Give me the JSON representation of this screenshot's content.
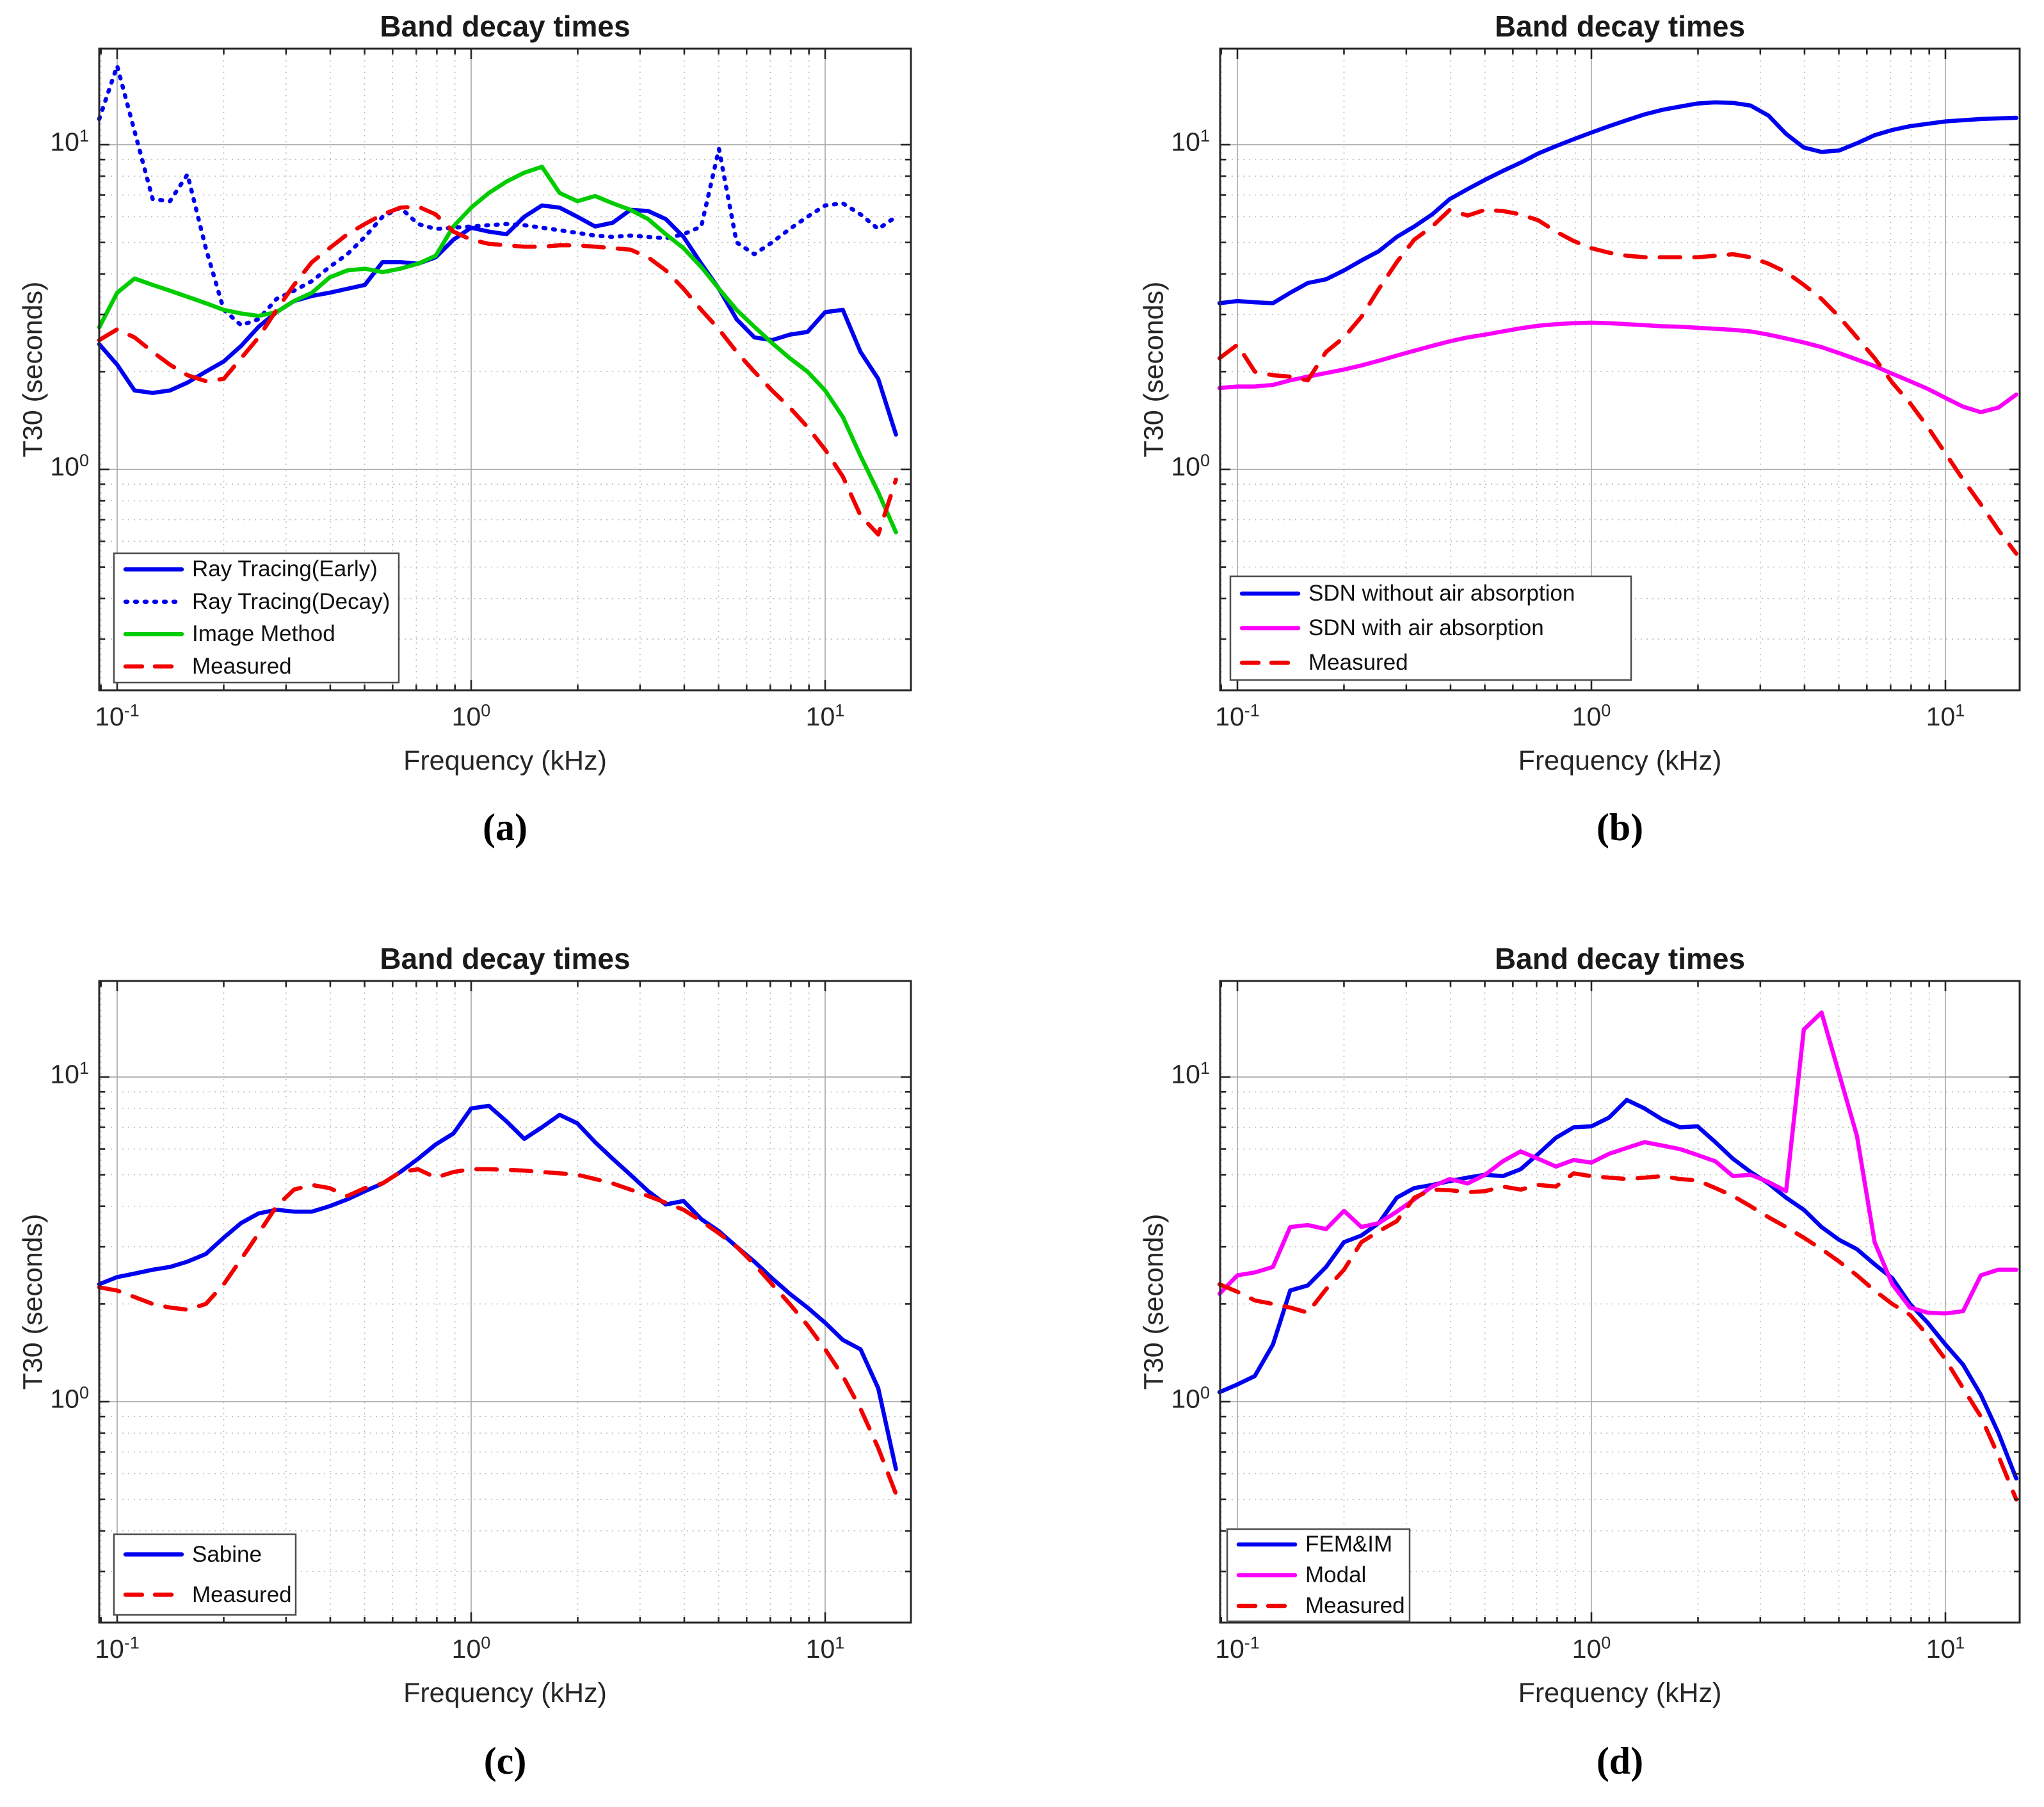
{
  "page": {
    "background": "#ffffff"
  },
  "shared": {
    "frequencies": [
      0.089,
      0.1,
      0.112,
      0.126,
      0.141,
      0.158,
      0.178,
      0.2,
      0.224,
      0.251,
      0.282,
      0.316,
      0.355,
      0.398,
      0.447,
      0.501,
      0.562,
      0.631,
      0.708,
      0.794,
      0.891,
      1.0,
      1.122,
      1.259,
      1.413,
      1.585,
      1.778,
      1.995,
      2.239,
      2.512,
      2.818,
      3.162,
      3.548,
      3.981,
      4.467,
      5.012,
      5.623,
      6.31,
      7.079,
      7.943,
      8.913,
      10.0,
      11.22,
      12.589,
      14.125,
      15.849
    ],
    "x_tick_values": [
      0.1,
      1,
      10
    ],
    "x_tick_labels": [
      {
        "base": "10",
        "exp": "-1"
      },
      {
        "base": "10",
        "exp": "0"
      },
      {
        "base": "10",
        "exp": "1"
      }
    ],
    "y_tick_values": [
      1,
      10
    ],
    "y_tick_labels": [
      {
        "base": "10",
        "exp": "0"
      },
      {
        "base": "10",
        "exp": "1"
      }
    ],
    "colors": {
      "blue": "#0000f0",
      "green": "#00cc00",
      "red": "#f20000",
      "magenta": "#fa00fa",
      "grid_major": "#ababab",
      "grid_minor": "#bdbdbd",
      "frame": "#262626",
      "legend_border": "#4d4d4d"
    }
  },
  "chart_data": [
    {
      "id": "a",
      "caption": "(a)",
      "type": "line",
      "title": "Band decay times",
      "xlabel": "Frequency (kHz)",
      "ylabel": "T30 (seconds)",
      "log_x": true,
      "log_y": true,
      "xlim": [
        0.089,
        17.5
      ],
      "ylim": [
        0.21,
        19.8
      ],
      "legend_position": "southwest",
      "series": [
        {
          "name": "Ray Tracing(Early)",
          "color": "blue",
          "style": "solid",
          "values": [
            2.43,
            2.1,
            1.75,
            1.72,
            1.75,
            1.85,
            2.0,
            2.15,
            2.4,
            2.75,
            3.05,
            3.3,
            3.42,
            3.5,
            3.6,
            3.7,
            4.35,
            4.35,
            4.3,
            4.5,
            5.1,
            5.55,
            5.4,
            5.3,
            6.0,
            6.5,
            6.4,
            6.0,
            5.6,
            5.75,
            6.3,
            6.25,
            5.9,
            5.2,
            4.3,
            3.6,
            2.9,
            2.55,
            2.5,
            2.6,
            2.65,
            3.05,
            3.1,
            2.3,
            1.9,
            1.28
          ]
        },
        {
          "name": "Ray Tracing(Decay)",
          "color": "blue",
          "style": "dotted",
          "values": [
            12.0,
            17.5,
            11.0,
            6.8,
            6.7,
            8.1,
            4.8,
            3.1,
            2.78,
            2.9,
            3.35,
            3.55,
            3.8,
            4.2,
            4.6,
            5.2,
            6.0,
            6.4,
            5.7,
            5.5,
            5.55,
            5.6,
            5.65,
            5.7,
            5.65,
            5.55,
            5.45,
            5.35,
            5.25,
            5.2,
            5.25,
            5.2,
            5.15,
            5.3,
            5.6,
            9.7,
            5.0,
            4.6,
            5.0,
            5.5,
            6.0,
            6.5,
            6.6,
            6.1,
            5.5,
            6.0
          ]
        },
        {
          "name": "Image Method",
          "color": "green",
          "style": "solid",
          "values": [
            2.74,
            3.5,
            3.87,
            3.7,
            3.55,
            3.4,
            3.25,
            3.1,
            3.02,
            2.97,
            3.05,
            3.3,
            3.5,
            3.9,
            4.1,
            4.15,
            4.05,
            4.15,
            4.3,
            4.55,
            5.6,
            6.4,
            7.1,
            7.7,
            8.2,
            8.55,
            7.1,
            6.7,
            6.95,
            6.6,
            6.3,
            5.9,
            5.3,
            4.8,
            4.2,
            3.6,
            3.1,
            2.75,
            2.45,
            2.2,
            2.0,
            1.75,
            1.45,
            1.1,
            0.85,
            0.64
          ]
        },
        {
          "name": "Measured",
          "color": "red",
          "style": "dashed",
          "values": [
            2.5,
            2.7,
            2.55,
            2.3,
            2.1,
            1.95,
            1.87,
            1.9,
            2.2,
            2.55,
            3.1,
            3.7,
            4.35,
            4.8,
            5.3,
            5.7,
            6.1,
            6.4,
            6.45,
            6.1,
            5.4,
            5.1,
            4.95,
            4.9,
            4.85,
            4.85,
            4.9,
            4.9,
            4.85,
            4.8,
            4.75,
            4.5,
            4.1,
            3.6,
            3.1,
            2.7,
            2.3,
            2.0,
            1.75,
            1.55,
            1.35,
            1.15,
            0.95,
            0.72,
            0.63,
            0.93
          ]
        }
      ]
    },
    {
      "id": "b",
      "caption": "(b)",
      "type": "line",
      "title": "Band decay times",
      "xlabel": "Frequency (kHz)",
      "ylabel": "T30 (seconds)",
      "log_x": true,
      "log_y": true,
      "xlim": [
        0.089,
        16.1
      ],
      "ylim": [
        0.21,
        19.8
      ],
      "legend_position": "southwest",
      "series": [
        {
          "name": "SDN without air absorption",
          "color": "blue",
          "style": "solid",
          "values": [
            3.25,
            3.3,
            3.27,
            3.25,
            3.5,
            3.75,
            3.85,
            4.1,
            4.4,
            4.7,
            5.2,
            5.6,
            6.1,
            6.8,
            7.3,
            7.8,
            8.3,
            8.8,
            9.4,
            9.9,
            10.4,
            10.9,
            11.4,
            11.9,
            12.4,
            12.8,
            13.1,
            13.4,
            13.5,
            13.45,
            13.2,
            12.3,
            10.8,
            9.8,
            9.5,
            9.6,
            10.1,
            10.7,
            11.1,
            11.4,
            11.6,
            11.8,
            11.9,
            12.0,
            12.05,
            12.1
          ]
        },
        {
          "name": "SDN with air absorption",
          "color": "magenta",
          "style": "solid",
          "values": [
            1.78,
            1.8,
            1.8,
            1.82,
            1.88,
            1.93,
            1.98,
            2.03,
            2.09,
            2.16,
            2.24,
            2.32,
            2.4,
            2.48,
            2.55,
            2.6,
            2.66,
            2.72,
            2.77,
            2.8,
            2.82,
            2.83,
            2.82,
            2.8,
            2.78,
            2.76,
            2.75,
            2.73,
            2.71,
            2.69,
            2.66,
            2.6,
            2.53,
            2.46,
            2.38,
            2.28,
            2.18,
            2.08,
            1.97,
            1.87,
            1.77,
            1.66,
            1.56,
            1.5,
            1.55,
            1.7
          ]
        },
        {
          "name": "Measured",
          "color": "red",
          "style": "dashed",
          "values": [
            2.2,
            2.42,
            2.0,
            1.95,
            1.93,
            1.88,
            2.3,
            2.55,
            2.95,
            3.6,
            4.35,
            5.1,
            5.6,
            6.3,
            6.05,
            6.3,
            6.25,
            6.1,
            5.85,
            5.4,
            5.05,
            4.8,
            4.65,
            4.55,
            4.5,
            4.5,
            4.5,
            4.5,
            4.55,
            4.6,
            4.5,
            4.3,
            4.05,
            3.7,
            3.35,
            2.95,
            2.55,
            2.2,
            1.85,
            1.6,
            1.35,
            1.12,
            0.93,
            0.78,
            0.65,
            0.55
          ]
        }
      ]
    },
    {
      "id": "c",
      "caption": "(c)",
      "type": "line",
      "title": "Band decay times",
      "xlabel": "Frequency (kHz)",
      "ylabel": "T30 (seconds)",
      "log_x": true,
      "log_y": true,
      "xlim": [
        0.089,
        17.5
      ],
      "ylim": [
        0.21,
        19.8
      ],
      "legend_position": "southwest",
      "series": [
        {
          "name": "Sabine",
          "color": "blue",
          "style": "solid",
          "values": [
            2.3,
            2.42,
            2.48,
            2.55,
            2.6,
            2.7,
            2.85,
            3.2,
            3.55,
            3.8,
            3.9,
            3.85,
            3.85,
            4.0,
            4.2,
            4.45,
            4.7,
            5.1,
            5.6,
            6.2,
            6.7,
            8.0,
            8.15,
            7.3,
            6.45,
            7.0,
            7.65,
            7.2,
            6.3,
            5.6,
            5.0,
            4.45,
            4.05,
            4.15,
            3.65,
            3.35,
            3.0,
            2.7,
            2.4,
            2.15,
            1.95,
            1.75,
            1.55,
            1.45,
            1.1,
            0.62
          ]
        },
        {
          "name": "Measured",
          "color": "red",
          "style": "dashed",
          "values": [
            2.25,
            2.2,
            2.1,
            2.0,
            1.95,
            1.92,
            2.0,
            2.3,
            2.75,
            3.3,
            4.0,
            4.5,
            4.65,
            4.55,
            4.3,
            4.55,
            4.7,
            5.1,
            5.2,
            4.9,
            5.1,
            5.2,
            5.2,
            5.18,
            5.15,
            5.1,
            5.05,
            5.0,
            4.85,
            4.7,
            4.5,
            4.3,
            4.1,
            3.9,
            3.6,
            3.3,
            3.0,
            2.65,
            2.3,
            2.0,
            1.72,
            1.45,
            1.2,
            0.95,
            0.72,
            0.52
          ]
        }
      ]
    },
    {
      "id": "d",
      "caption": "(d)",
      "type": "line",
      "title": "Band decay times",
      "xlabel": "Frequency (kHz)",
      "ylabel": "T30 (seconds)",
      "log_x": true,
      "log_y": true,
      "xlim": [
        0.089,
        16.1
      ],
      "ylim": [
        0.21,
        19.8
      ],
      "legend_position": "southwest",
      "series": [
        {
          "name": "FEM&IM",
          "color": "blue",
          "style": "solid",
          "values": [
            1.07,
            1.13,
            1.2,
            1.5,
            2.2,
            2.28,
            2.6,
            3.1,
            3.25,
            3.55,
            4.25,
            4.55,
            4.65,
            4.78,
            4.9,
            5.0,
            4.95,
            5.2,
            5.8,
            6.5,
            7.0,
            7.05,
            7.5,
            8.5,
            8.0,
            7.4,
            7.0,
            7.05,
            6.3,
            5.6,
            5.1,
            4.7,
            4.25,
            3.9,
            3.45,
            3.15,
            2.95,
            2.65,
            2.4,
            2.0,
            1.75,
            1.5,
            1.3,
            1.05,
            0.8,
            0.58
          ]
        },
        {
          "name": "Modal",
          "color": "magenta",
          "style": "solid",
          "values": [
            2.15,
            2.45,
            2.5,
            2.6,
            3.45,
            3.5,
            3.4,
            3.87,
            3.45,
            3.55,
            3.85,
            4.2,
            4.6,
            4.85,
            4.7,
            5.0,
            5.5,
            5.9,
            5.6,
            5.3,
            5.55,
            5.45,
            5.8,
            6.05,
            6.3,
            6.15,
            6.0,
            5.75,
            5.5,
            4.95,
            5.0,
            4.75,
            4.45,
            14.0,
            15.8,
            10.2,
            6.6,
            3.1,
            2.3,
            1.95,
            1.88,
            1.87,
            1.9,
            2.45,
            2.55,
            2.55
          ]
        },
        {
          "name": "Measured",
          "color": "red",
          "style": "dashed",
          "values": [
            2.3,
            2.18,
            2.05,
            2.0,
            1.95,
            1.88,
            2.22,
            2.55,
            3.1,
            3.35,
            3.6,
            4.25,
            4.5,
            4.48,
            4.42,
            4.45,
            4.6,
            4.5,
            4.65,
            4.6,
            5.05,
            4.95,
            4.9,
            4.85,
            4.9,
            4.95,
            4.85,
            4.8,
            4.55,
            4.3,
            4.0,
            3.7,
            3.45,
            3.2,
            2.95,
            2.7,
            2.45,
            2.2,
            2.0,
            1.85,
            1.6,
            1.35,
            1.1,
            0.9,
            0.68,
            0.5
          ]
        }
      ]
    }
  ]
}
